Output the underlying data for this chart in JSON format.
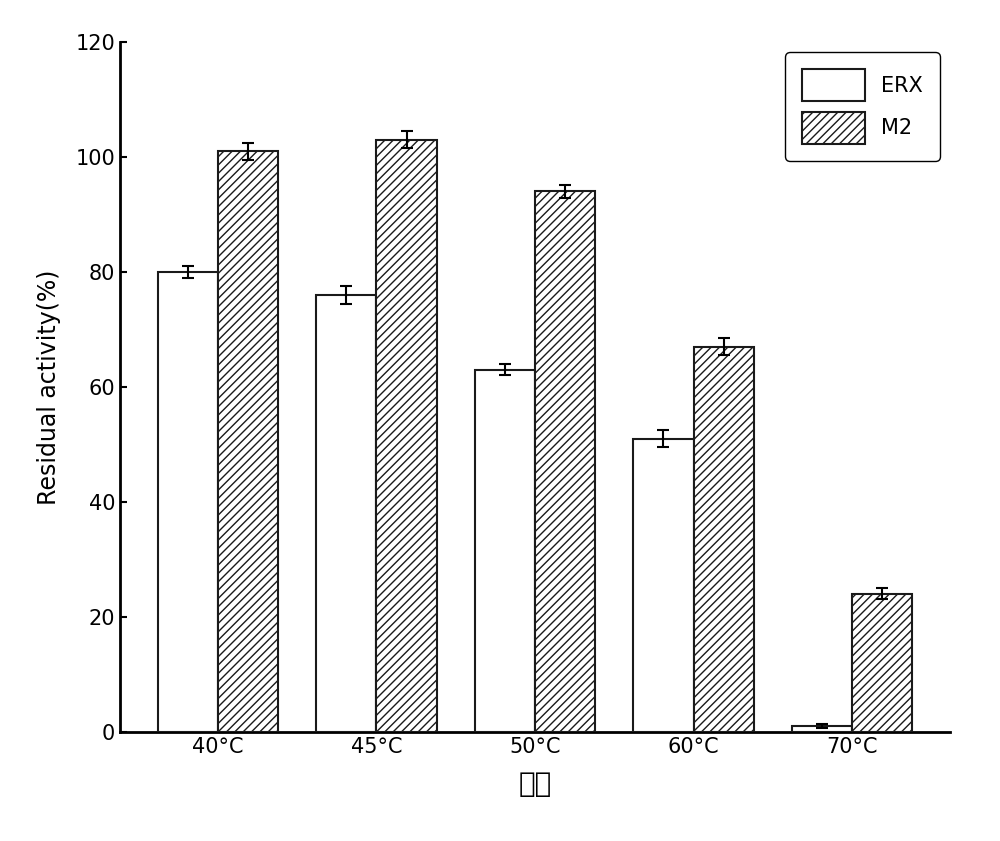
{
  "categories": [
    "40°C",
    "45°C",
    "50°C",
    "60°C",
    "70°C"
  ],
  "erx_values": [
    80,
    76,
    63,
    51,
    1
  ],
  "m2_values": [
    101,
    103,
    94,
    67,
    24
  ],
  "erx_errors": [
    1.0,
    1.5,
    1.0,
    1.5,
    0.4
  ],
  "m2_errors": [
    1.5,
    1.5,
    1.2,
    1.5,
    1.0
  ],
  "ylabel": "Residual activity(%)",
  "xlabel": "温度",
  "ylim": [
    0,
    120
  ],
  "yticks": [
    0,
    20,
    40,
    60,
    80,
    100,
    120
  ],
  "bar_width": 0.38,
  "erx_color": "white",
  "erx_edgecolor": "#1a1a1a",
  "m2_color": "white",
  "m2_edgecolor": "#1a1a1a",
  "m2_hatch": "////",
  "legend_labels": [
    "ERX",
    "M2"
  ],
  "label_fontsize": 17,
  "tick_fontsize": 15,
  "legend_fontsize": 15,
  "xlabel_fontsize": 20,
  "figure_width": 10.0,
  "figure_height": 8.41,
  "dpi": 100,
  "spine_linewidth": 2.0,
  "bar_linewidth": 1.5
}
